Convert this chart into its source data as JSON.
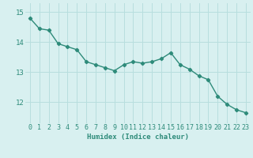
{
  "x": [
    0,
    1,
    2,
    3,
    4,
    5,
    6,
    7,
    8,
    9,
    10,
    11,
    12,
    13,
    14,
    15,
    16,
    17,
    18,
    19,
    20,
    21,
    22,
    23
  ],
  "y": [
    14.8,
    14.45,
    14.4,
    13.95,
    13.85,
    13.75,
    13.35,
    13.25,
    13.15,
    13.05,
    13.25,
    13.35,
    13.3,
    13.35,
    13.45,
    13.65,
    13.25,
    13.1,
    12.88,
    12.75,
    12.2,
    11.93,
    11.75,
    11.65
  ],
  "line_color": "#2e8b7a",
  "marker": "D",
  "marker_size": 2.2,
  "bg_color": "#d8f0f0",
  "grid_color": "#b8dede",
  "xlabel": "Humidex (Indice chaleur)",
  "yticks": [
    12,
    13,
    14,
    15
  ],
  "ylim": [
    11.3,
    15.3
  ],
  "xlim": [
    -0.5,
    23.5
  ],
  "tick_fontsize": 6,
  "xlabel_fontsize": 6.5
}
